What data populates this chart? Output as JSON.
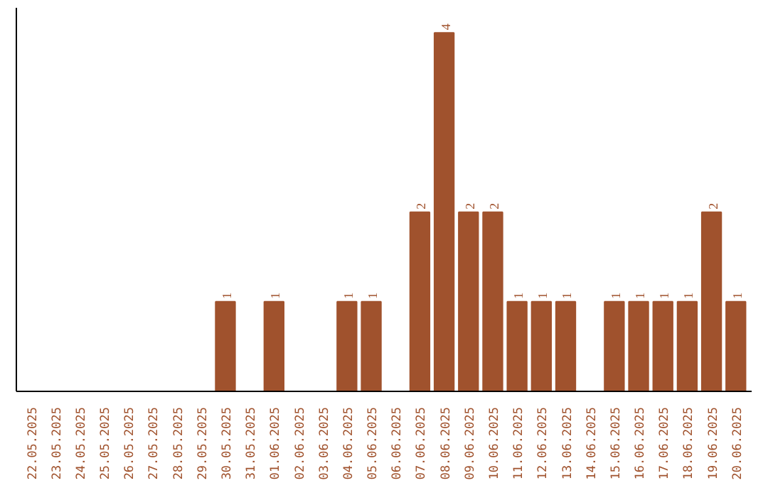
{
  "chart_data": {
    "type": "bar",
    "categories": [
      "22.05.2025",
      "23.05.2025",
      "24.05.2025",
      "25.05.2025",
      "26.05.2025",
      "27.05.2025",
      "28.05.2025",
      "29.05.2025",
      "30.05.2025",
      "31.05.2025",
      "01.06.2025",
      "02.06.2025",
      "03.06.2025",
      "04.06.2025",
      "05.06.2025",
      "06.06.2025",
      "07.06.2025",
      "08.06.2025",
      "09.06.2025",
      "10.06.2025",
      "11.06.2025",
      "12.06.2025",
      "13.06.2025",
      "14.06.2025",
      "15.06.2025",
      "16.06.2025",
      "17.06.2025",
      "18.06.2025",
      "19.06.2025",
      "20.06.2025"
    ],
    "values": [
      0,
      0,
      0,
      0,
      0,
      0,
      0,
      0,
      1,
      0,
      1,
      0,
      0,
      1,
      1,
      0,
      2,
      4,
      2,
      2,
      1,
      1,
      1,
      0,
      1,
      1,
      1,
      1,
      2,
      1
    ],
    "value_labels": [
      null,
      null,
      null,
      null,
      null,
      null,
      null,
      null,
      "1",
      null,
      "1",
      null,
      null,
      "1",
      "1",
      null,
      "2",
      "4",
      "2",
      "2",
      "1",
      "1",
      "1",
      null,
      "1",
      "1",
      "1",
      "1",
      "2",
      "1"
    ],
    "color": "#a0522d",
    "grid": false
  }
}
